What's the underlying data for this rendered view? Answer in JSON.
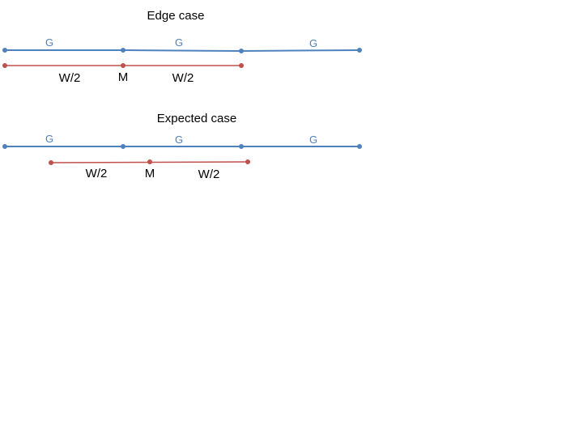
{
  "colors": {
    "blue": "#4f81bd",
    "red": "#c0504d",
    "text": "#000000"
  },
  "edge_case": {
    "title": "Edge case",
    "blue_segment_labels": [
      "G",
      "G",
      "G"
    ],
    "red_labels": {
      "left": "W/2",
      "middle": "M",
      "right": "W/2"
    }
  },
  "expected_case": {
    "title": "Expected case",
    "blue_segment_labels": [
      "G",
      "G",
      "G"
    ],
    "red_labels": {
      "left": "W/2",
      "middle": "M",
      "right": "W/2"
    }
  }
}
